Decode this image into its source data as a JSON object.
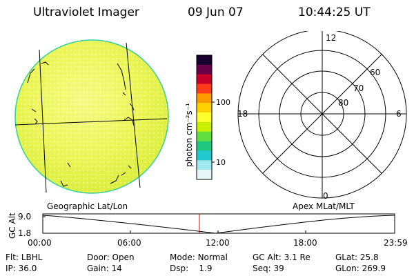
{
  "header": {
    "instrument": "Ultraviolet Imager",
    "date": "09 Jun 07",
    "time": "10:44:25 UT"
  },
  "colorbar": {
    "label": "photon cm⁻²s⁻¹",
    "ticks": [
      "100",
      "10"
    ],
    "colors": [
      "#1a0030",
      "#6a004a",
      "#c8002a",
      "#ff3a1a",
      "#ff9a00",
      "#ffd200",
      "#ffff30",
      "#c8f000",
      "#60e040",
      "#20c880",
      "#20c8d0",
      "#a0e8f0",
      "#e8f8f8"
    ]
  },
  "polar_plot": {
    "mlt_labels": {
      "top": "12",
      "bottom": "0",
      "left": "18",
      "right": "6"
    },
    "mlat_labels": [
      "60",
      "70",
      "80"
    ]
  },
  "altitude_plot": {
    "ylabel": "GC Alt",
    "yticks": [
      "9.0",
      "1.8"
    ],
    "left_label": "Geographic Lat/Lon",
    "right_label": "Apex MLat/MLT",
    "xticks": [
      "00:00",
      "06:00",
      "12:00",
      "18:00",
      "23:59"
    ],
    "current_time_marker": "10:44"
  },
  "status": {
    "row1": [
      {
        "key": "Flt:",
        "value": "LBHL"
      },
      {
        "key": "Door:",
        "value": "Open"
      },
      {
        "key": "Mode:",
        "value": "Normal"
      },
      {
        "key": "GC Alt:",
        "value": "3.1 Re"
      },
      {
        "key": "GLat:",
        "value": "25.8"
      }
    ],
    "row2": [
      {
        "key": "IP:",
        "value": "36.0"
      },
      {
        "key": "Gain:",
        "value": "14"
      },
      {
        "key": "Dsp:",
        "value": "1.9"
      },
      {
        "key": "Seq:",
        "value": "39"
      },
      {
        "key": "GLon:",
        "value": "269.9"
      }
    ]
  }
}
